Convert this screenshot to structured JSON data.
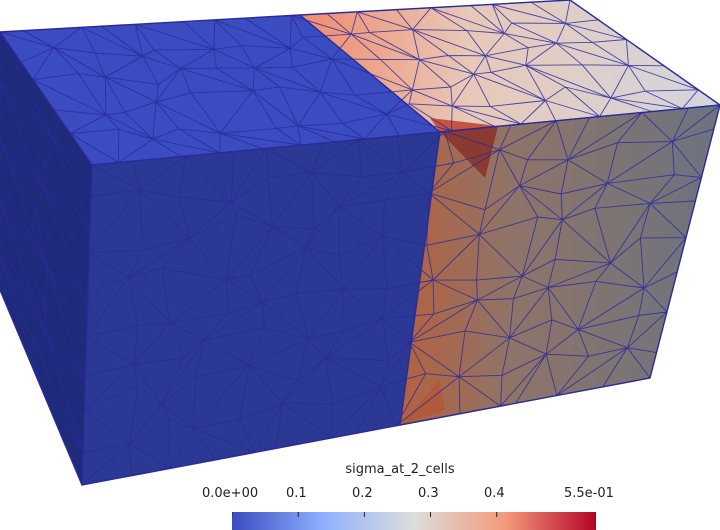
{
  "colorbar": {
    "title": "sigma_at_2_cells",
    "ticks": [
      "0.0e+00",
      "0.1",
      "0.2",
      "0.3",
      "0.4",
      "5.5e-01"
    ],
    "tick_values": [
      0.0,
      0.1,
      0.2,
      0.3,
      0.4,
      0.55
    ],
    "range": [
      0.0,
      0.55
    ],
    "colormap": [
      "#3b4cc0",
      "#8db0fe",
      "#dddddd",
      "#f49a7b",
      "#b40426"
    ]
  },
  "colors": {
    "background": "#ffffff",
    "mesh_edges": "#2a2a9a",
    "region_low_top": "#3b4cc0",
    "region_low_front": "#2b3894",
    "region_low_side": "#1f2a78",
    "region_high_top": "#d8d8dc",
    "region_high_front": "#6d7480",
    "region_peak": "#c44a3c"
  }
}
